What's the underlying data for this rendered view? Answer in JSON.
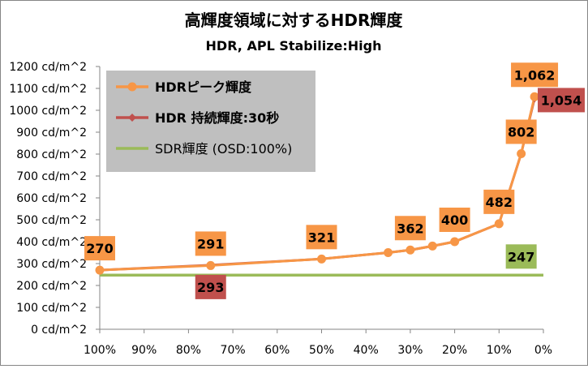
{
  "chart_data": {
    "type": "line",
    "title": "高輝度領域に対するHDR輝度",
    "subtitle": "HDR, APL Stabilize:High",
    "y_ticks": [
      "0 cd/m^2",
      "100 cd/m^2",
      "200 cd/m^2",
      "300 cd/m^2",
      "400 cd/m^2",
      "500 cd/m^2",
      "600 cd/m^2",
      "700 cd/m^2",
      "800 cd/m^2",
      "900 cd/m^2",
      "1000 cd/m^2",
      "1100 cd/m^2",
      "1200 cd/m^2"
    ],
    "x_ticks": [
      "100%",
      "90%",
      "80%",
      "70%",
      "60%",
      "50%",
      "40%",
      "30%",
      "20%",
      "10%",
      "0%"
    ],
    "xlim": [
      100,
      0
    ],
    "ylim": [
      0,
      1200
    ],
    "grid": false,
    "legend_position": "top-left",
    "series": [
      {
        "name": "HDRピーク輝度",
        "color": "#f79646",
        "marker": "circle",
        "points": [
          [
            100,
            270
          ],
          [
            75,
            291
          ],
          [
            50,
            321
          ],
          [
            35,
            350
          ],
          [
            30,
            362
          ],
          [
            25,
            380
          ],
          [
            20,
            400
          ],
          [
            10,
            482
          ],
          [
            5,
            802
          ],
          [
            2,
            1062
          ]
        ]
      },
      {
        "name": "HDR 持続輝度:30秒",
        "color": "#c0504d",
        "marker": "diamond",
        "points": [
          [
            100,
            270
          ],
          [
            75,
            293
          ],
          [
            50,
            321
          ],
          [
            35,
            350
          ],
          [
            30,
            362
          ],
          [
            25,
            380
          ],
          [
            20,
            400
          ],
          [
            10,
            482
          ],
          [
            5,
            802
          ],
          [
            2,
            1054
          ]
        ]
      },
      {
        "name": "SDR輝度 (OSD:100%)",
        "color": "#9bbb59",
        "marker": "none",
        "points": [
          [
            100,
            247
          ],
          [
            0,
            247
          ]
        ]
      }
    ],
    "annotations": [
      {
        "text": "270",
        "x": 100,
        "y": 270,
        "series": 0,
        "placement": "above"
      },
      {
        "text": "291",
        "x": 75,
        "y": 291,
        "series": 0,
        "placement": "above"
      },
      {
        "text": "293",
        "x": 75,
        "y": 293,
        "series": 1,
        "placement": "below"
      },
      {
        "text": "321",
        "x": 50,
        "y": 321,
        "series": 0,
        "placement": "above"
      },
      {
        "text": "362",
        "x": 30,
        "y": 362,
        "series": 0,
        "placement": "above"
      },
      {
        "text": "400",
        "x": 20,
        "y": 400,
        "series": 0,
        "placement": "above"
      },
      {
        "text": "482",
        "x": 10,
        "y": 482,
        "series": 0,
        "placement": "above"
      },
      {
        "text": "802",
        "x": 5,
        "y": 802,
        "series": 0,
        "placement": "above"
      },
      {
        "text": "1,062",
        "x": 2,
        "y": 1062,
        "series": 0,
        "placement": "above"
      },
      {
        "text": "1,054",
        "x": 2,
        "y": 1054,
        "series": 1,
        "placement": "right"
      },
      {
        "text": "247",
        "x": 5,
        "y": 247,
        "series": 2,
        "placement": "above"
      }
    ]
  }
}
